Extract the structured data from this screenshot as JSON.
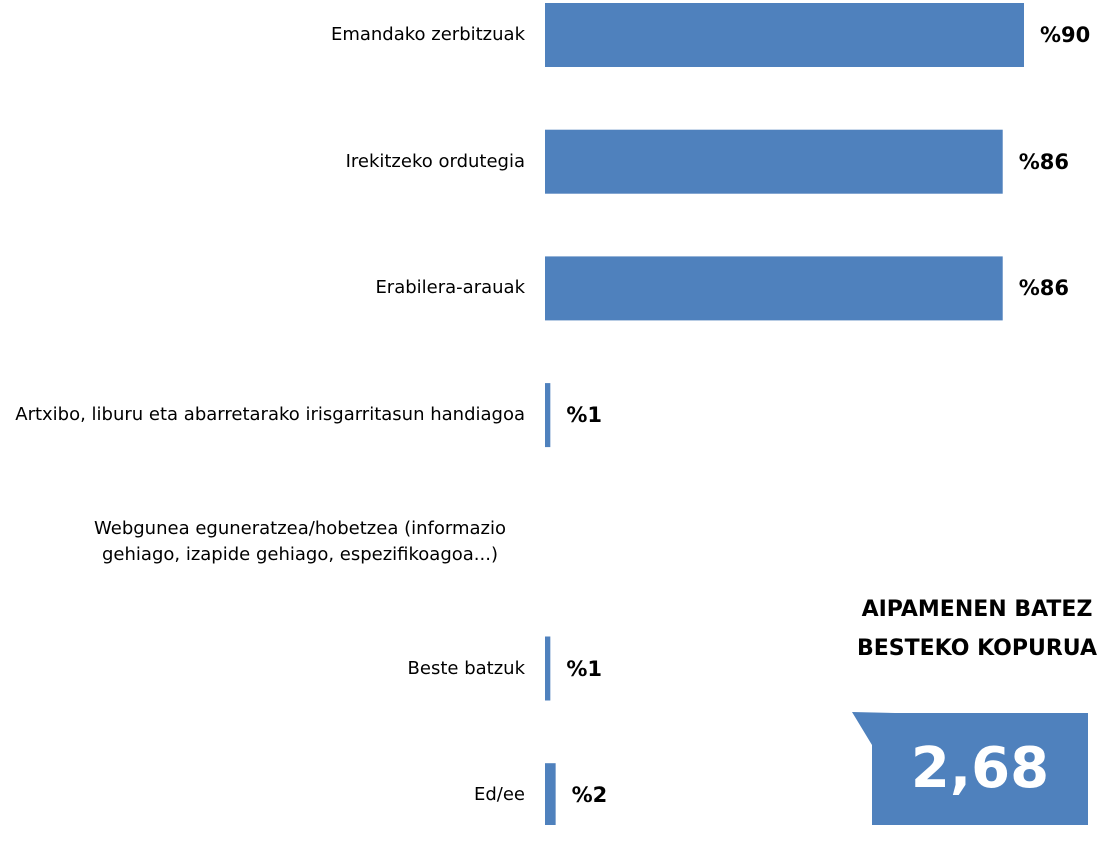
{
  "chart_data": {
    "type": "hbar",
    "categories": [
      "Emandako zerbitzuak",
      "Irekitzeko ordutegia",
      "Erabilera-arauak",
      "Artxibo, liburu eta abarretarako irisgarritasun handiagoa",
      "Webgunea eguneratzea/hobetzea (informazio gehiago, izapide gehiago, espezifikoagoa...)",
      "Beste batzuk",
      "Ed/ee"
    ],
    "values": [
      90,
      86,
      86,
      1,
      null,
      1,
      2
    ],
    "value_labels": [
      "%90",
      "%86",
      "%86",
      "%1",
      null,
      "%1",
      "%2"
    ],
    "color": "#4f81bd",
    "xlim": [
      0,
      90
    ],
    "annotation": {
      "title": "AIPAMENEN BATEZ BESTEKO KOPURUA",
      "value": "2,68",
      "color": "#4f81bd"
    }
  }
}
